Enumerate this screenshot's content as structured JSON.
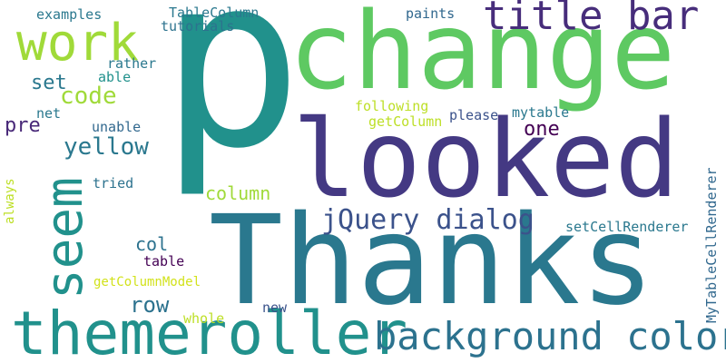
{
  "words": [
    {
      "id": "p",
      "text": "p",
      "color": "#21918c"
    },
    {
      "id": "change",
      "text": "change",
      "color": "#5ec962"
    },
    {
      "id": "looked",
      "text": "looked",
      "color": "#443983"
    },
    {
      "id": "thanks",
      "text": "Thanks",
      "color": "#2a788e"
    },
    {
      "id": "themeroller",
      "text": "themeroller",
      "color": "#21918c"
    },
    {
      "id": "work",
      "text": "work",
      "color": "#a0da39"
    },
    {
      "id": "seem",
      "text": "seem",
      "color": "#21918c"
    },
    {
      "id": "title-bar",
      "text": "title bar",
      "color": "#472d7b"
    },
    {
      "id": "background-color",
      "text": "background color",
      "color": "#2c728e"
    },
    {
      "id": "jquery-dialog",
      "text": "jQuery dialog",
      "color": "#3b528b"
    },
    {
      "id": "yellow",
      "text": "yellow",
      "color": "#2a788e"
    },
    {
      "id": "code",
      "text": "code",
      "color": "#a0da39"
    },
    {
      "id": "column",
      "text": "column",
      "color": "#a0da39"
    },
    {
      "id": "row",
      "text": "row",
      "color": "#2c728e"
    },
    {
      "id": "set",
      "text": "set",
      "color": "#2a788e"
    },
    {
      "id": "pre",
      "text": "pre",
      "color": "#482878"
    },
    {
      "id": "one",
      "text": "one",
      "color": "#440154"
    },
    {
      "id": "col",
      "text": "col",
      "color": "#2c728e"
    },
    {
      "id": "examples",
      "text": "examples",
      "color": "#2a788e"
    },
    {
      "id": "tablecolumn",
      "text": "TableColumn",
      "color": "#2a788e"
    },
    {
      "id": "tutorials",
      "text": "tutorials",
      "color": "#2c728e"
    },
    {
      "id": "paints",
      "text": "paints",
      "color": "#31688e"
    },
    {
      "id": "rather",
      "text": "rather",
      "color": "#2a788e"
    },
    {
      "id": "able",
      "text": "able",
      "color": "#21918c"
    },
    {
      "id": "net",
      "text": "net",
      "color": "#2a788e"
    },
    {
      "id": "following",
      "text": "following",
      "color": "#bddf26"
    },
    {
      "id": "getcolumn",
      "text": "getColumn",
      "color": "#bddf26"
    },
    {
      "id": "please",
      "text": "please",
      "color": "#3b528b"
    },
    {
      "id": "mytable",
      "text": "mytable",
      "color": "#2a788e"
    },
    {
      "id": "unable",
      "text": "unable",
      "color": "#31688e"
    },
    {
      "id": "tried",
      "text": "tried",
      "color": "#2c728e"
    },
    {
      "id": "always",
      "text": "always",
      "color": "#bddf26"
    },
    {
      "id": "table",
      "text": "table",
      "color": "#440154"
    },
    {
      "id": "getcolumnmodel",
      "text": "getColumnModel",
      "color": "#d2e21b"
    },
    {
      "id": "setcellrenderer",
      "text": "setCellRenderer",
      "color": "#2a788e"
    },
    {
      "id": "mytablecellrenderer",
      "text": "MyTableCellRenderer",
      "color": "#31688e"
    },
    {
      "id": "new",
      "text": "new",
      "color": "#3b528b"
    },
    {
      "id": "whole",
      "text": "whole",
      "color": "#bddf26"
    }
  ]
}
